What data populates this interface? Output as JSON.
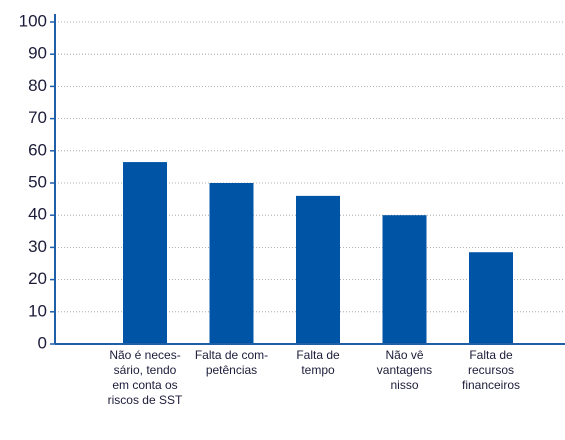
{
  "chart_data": {
    "type": "bar",
    "categories": [
      "Não é neces-\nsário, tendo\nem conta os\nriscos de SST",
      "Falta de com-\npetências",
      "Falta de\ntempo",
      "Não vê\nvantagens\nnisso",
      "Falta de\nrecursos\nfinanceiros"
    ],
    "values": [
      56.5,
      50,
      46,
      40,
      28.5
    ],
    "color": "#0054a6",
    "ylim": [
      0,
      100
    ],
    "yticks": [
      0,
      10,
      20,
      30,
      40,
      50,
      60,
      70,
      80,
      90,
      100
    ],
    "grid": true
  }
}
